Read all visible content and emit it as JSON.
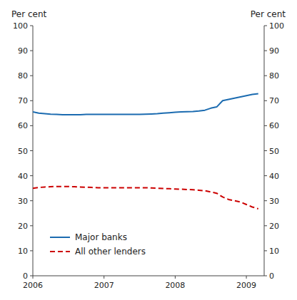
{
  "chart_data": {
    "type": "line",
    "y_label": "Per cent",
    "y2_label": "Per cent",
    "x": [
      2006.0,
      2006.083,
      2006.167,
      2006.25,
      2006.333,
      2006.417,
      2006.5,
      2006.583,
      2006.667,
      2006.75,
      2006.833,
      2006.917,
      2007.0,
      2007.083,
      2007.167,
      2007.25,
      2007.333,
      2007.417,
      2007.5,
      2007.583,
      2007.667,
      2007.75,
      2007.833,
      2007.917,
      2008.0,
      2008.083,
      2008.167,
      2008.25,
      2008.333,
      2008.417,
      2008.5,
      2008.583,
      2008.667,
      2008.75,
      2008.833,
      2008.917,
      2009.0,
      2009.083,
      2009.167
    ],
    "series": [
      {
        "name": "Major banks",
        "color": "#1B6BB0",
        "line_style": "solid",
        "values": [
          65.5,
          65.0,
          64.8,
          64.6,
          64.5,
          64.4,
          64.4,
          64.4,
          64.4,
          64.5,
          64.5,
          64.5,
          64.5,
          64.5,
          64.5,
          64.5,
          64.5,
          64.5,
          64.5,
          64.6,
          64.7,
          64.8,
          65.0,
          65.2,
          65.4,
          65.5,
          65.6,
          65.7,
          65.9,
          66.2,
          67.0,
          67.5,
          70.0,
          70.5,
          71.0,
          71.5,
          72.0,
          72.5,
          72.8
        ]
      },
      {
        "name": "All other lenders",
        "color": "#CC0000",
        "line_style": "dashed",
        "values": [
          35.0,
          35.3,
          35.5,
          35.6,
          35.7,
          35.7,
          35.7,
          35.6,
          35.5,
          35.4,
          35.3,
          35.2,
          35.2,
          35.2,
          35.2,
          35.2,
          35.2,
          35.2,
          35.2,
          35.2,
          35.1,
          35.0,
          34.9,
          34.8,
          34.7,
          34.6,
          34.5,
          34.4,
          34.2,
          34.0,
          33.5,
          33.0,
          31.5,
          30.5,
          30.0,
          29.5,
          28.5,
          27.5,
          26.8
        ]
      }
    ],
    "xlim": [
      2006.0,
      2009.25
    ],
    "xticks": [
      2006,
      2007,
      2008,
      2009
    ],
    "ylim": [
      0,
      100
    ],
    "yticks": [
      0,
      10,
      20,
      30,
      40,
      50,
      60,
      70,
      80,
      90,
      100
    ],
    "y2lim": [
      0,
      100
    ],
    "y2ticks": [
      0,
      10,
      20,
      30,
      40,
      50,
      60,
      70,
      80,
      90,
      100
    ],
    "grid": false,
    "legend": "lower left"
  }
}
